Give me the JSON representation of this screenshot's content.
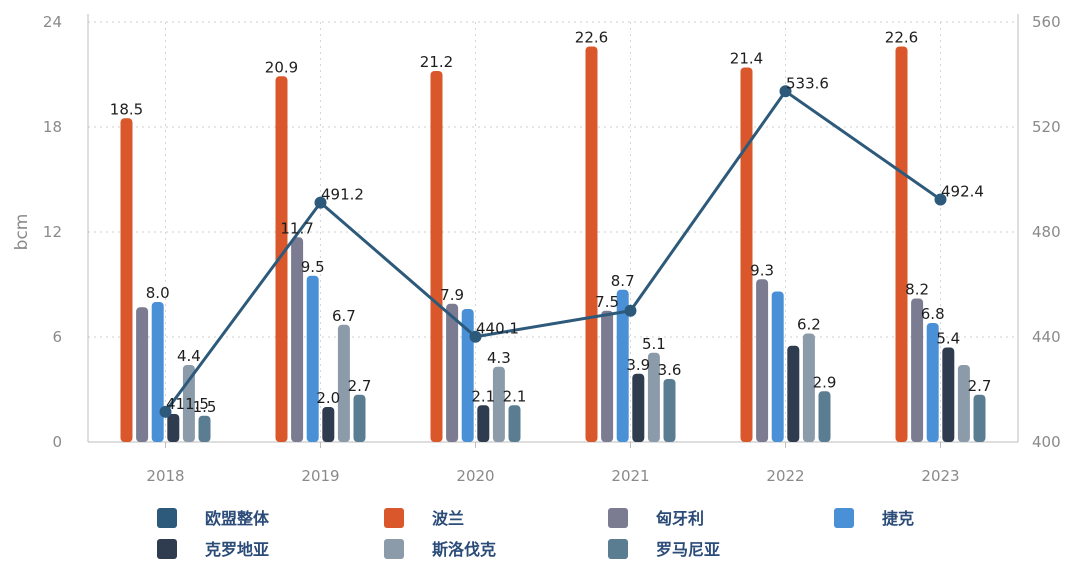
{
  "chart_data": {
    "type": "bar+line",
    "categories": [
      "2018",
      "2019",
      "2020",
      "2021",
      "2022",
      "2023"
    ],
    "ylabel": "bcm",
    "y_left": {
      "min": 0,
      "max": 24,
      "ticks": [
        "0",
        "6",
        "12",
        "18",
        "24"
      ]
    },
    "y_right": {
      "min": 400,
      "max": 560,
      "ticks": [
        "400",
        "440",
        "480",
        "520",
        "560"
      ]
    },
    "grid": true,
    "legend_position": "bottom",
    "bar_series": [
      {
        "name": "波兰",
        "color": "#d9572a",
        "values": [
          18.5,
          20.9,
          21.2,
          22.6,
          21.4,
          22.6
        ],
        "labels": [
          "18.5",
          "20.9",
          "21.2",
          "22.6",
          "21.4",
          "22.6"
        ]
      },
      {
        "name": "匈牙利",
        "color": "#7b7c92",
        "values": [
          7.7,
          11.7,
          7.9,
          7.5,
          9.3,
          8.2
        ],
        "labels": [
          "",
          "11.7",
          "7.9",
          "7.5",
          "9.3",
          "8.2"
        ]
      },
      {
        "name": "捷克",
        "color": "#4a90d6",
        "values": [
          8.0,
          9.5,
          7.6,
          8.7,
          8.6,
          6.8
        ],
        "labels": [
          "8.0",
          "9.5",
          "",
          "8.7",
          "",
          "6.8"
        ]
      },
      {
        "name": "克罗地亚",
        "color": "#2f3b4e",
        "values": [
          1.6,
          2.0,
          2.1,
          3.9,
          5.5,
          5.4
        ],
        "labels": [
          "",
          "2.0",
          "2.1",
          "3.9",
          "",
          "5.4"
        ]
      },
      {
        "name": "斯洛伐克",
        "color": "#8c9ba9",
        "values": [
          4.4,
          6.7,
          4.3,
          5.1,
          6.2,
          4.4
        ],
        "labels": [
          "4.4",
          "6.7",
          "4.3",
          "5.1",
          "6.2",
          ""
        ]
      },
      {
        "name": "罗马尼亚",
        "color": "#5a7d92",
        "values": [
          1.5,
          2.7,
          2.1,
          3.6,
          2.9,
          2.7
        ],
        "labels": [
          "1.5",
          "2.7",
          "2.1",
          "3.6",
          "2.9",
          "2.7"
        ]
      }
    ],
    "line_series": {
      "name": "欧盟整体",
      "color": "#2d5a7b",
      "axis": "right",
      "values": [
        411.5,
        491.2,
        440.1,
        450.0,
        533.6,
        492.4
      ],
      "labels": [
        "411.5",
        "491.2",
        "440.1",
        "",
        "533.6",
        "492.4"
      ]
    },
    "legend": [
      {
        "name": "欧盟整体",
        "color": "#2d5a7b"
      },
      {
        "name": "波兰",
        "color": "#d9572a"
      },
      {
        "name": "匈牙利",
        "color": "#7b7c92"
      },
      {
        "name": "捷克",
        "color": "#4a90d6"
      },
      {
        "name": "克罗地亚",
        "color": "#2f3b4e"
      },
      {
        "name": "斯洛伐克",
        "color": "#8c9ba9"
      },
      {
        "name": "罗马尼亚",
        "color": "#5a7d92"
      }
    ]
  }
}
